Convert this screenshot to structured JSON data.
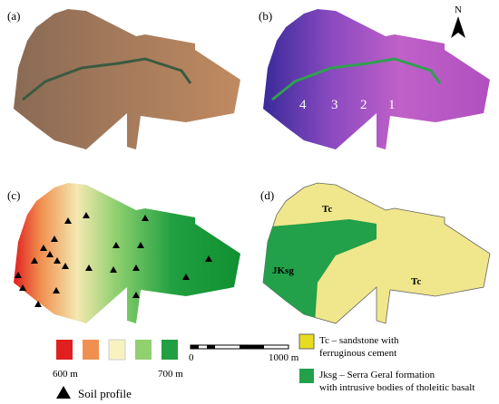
{
  "panels": [
    {
      "label": "(a)"
    },
    {
      "label": "(b)",
      "north": "N",
      "zones": [
        "4",
        "3",
        "2",
        "1"
      ]
    },
    {
      "label": "(c)"
    },
    {
      "label": "(d)",
      "units": [
        "Tc",
        "JKsg",
        "Tc"
      ]
    }
  ],
  "elevation_legend": {
    "min": "600 m",
    "max": "700 m"
  },
  "soil_profile": "Soil profile",
  "scale_bar": {
    "start": "0",
    "end": "1000 m"
  },
  "geology_legend": [
    {
      "line1": "Tc – sandstone with",
      "line2": "ferruginous cement"
    },
    {
      "line1": "Jksg – Serra Geral formation",
      "line2": "with intrusive bodies of tholeitic basalt"
    }
  ]
}
